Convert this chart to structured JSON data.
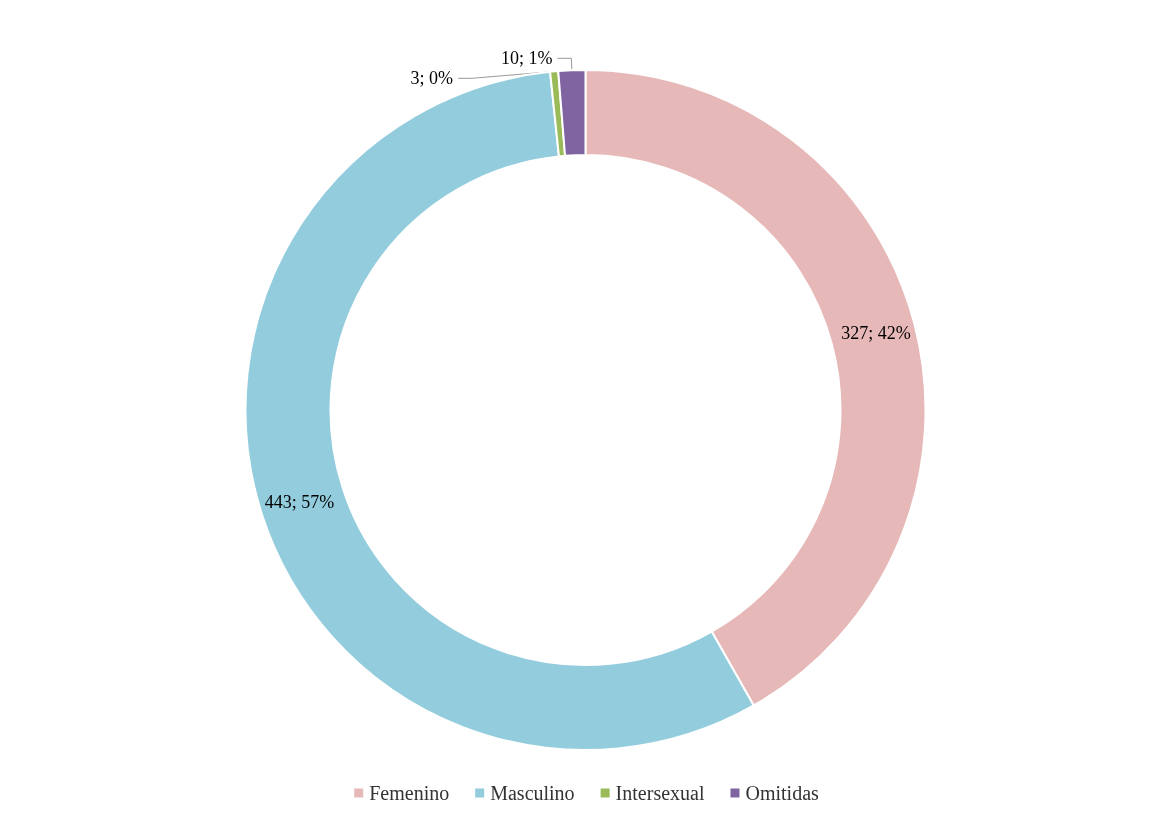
{
  "chart_data": {
    "type": "donut",
    "categories": [
      "Femenino",
      "Masculino",
      "Intersexual",
      "Omitidas"
    ],
    "values": [
      327,
      443,
      3,
      10
    ],
    "colors": [
      "#e6b8b7",
      "#93cddd",
      "#9bbb59",
      "#8064a2"
    ],
    "value_labels": [
      "327; 42%",
      "443; 57%",
      "3; 0%",
      "10; 1%"
    ],
    "legend": "bottom"
  }
}
